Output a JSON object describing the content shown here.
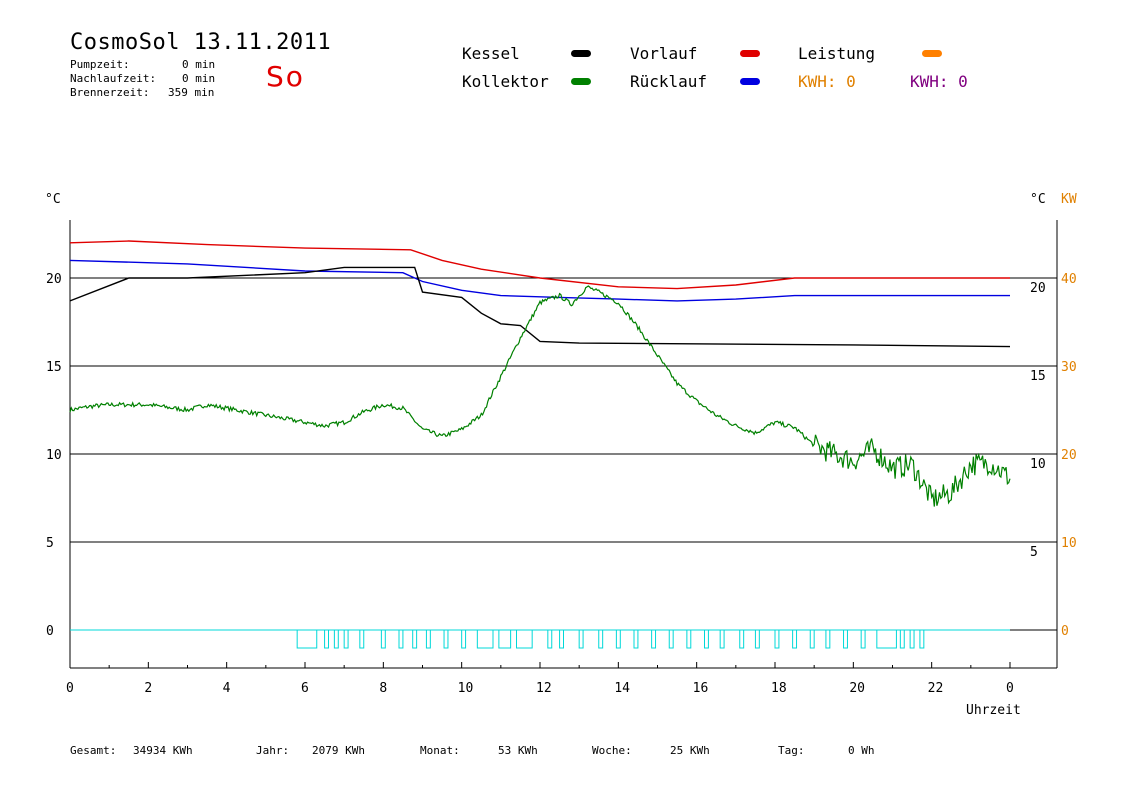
{
  "header": {
    "title": "CosmoSol 13.11.2011",
    "day": "So",
    "stats": [
      {
        "label": "Pumpzeit:",
        "value": "0 min"
      },
      {
        "label": "Nachlaufzeit:",
        "value": "0 min"
      },
      {
        "label": "Brennerzeit:",
        "value": "359 min"
      }
    ]
  },
  "legend": [
    {
      "label": "Kessel",
      "color": "#000000"
    },
    {
      "label": "Kollektor",
      "color": "#008000"
    },
    {
      "label": "Vorlauf",
      "color": "#e00000"
    },
    {
      "label": "Rücklauf",
      "color": "#0000e0"
    },
    {
      "label": "Leistung",
      "color": "#ff8000"
    },
    {
      "label": "KWH: 0",
      "color": "#e08000"
    },
    {
      "label": "KWH: 0",
      "color": "#800080"
    }
  ],
  "axes": {
    "left_unit": "°C",
    "right_unit": "°C",
    "right_kw_unit": "KW",
    "x_label": "Uhrzeit",
    "x_ticks": [
      "0",
      "2",
      "4",
      "6",
      "8",
      "10",
      "12",
      "14",
      "16",
      "18",
      "20",
      "22",
      "0"
    ],
    "y_left_ticks": [
      "0",
      "5",
      "10",
      "15",
      "20"
    ],
    "y_right_ticks": [
      "5",
      "10",
      "15",
      "20"
    ],
    "y_kw_ticks": [
      "0",
      "10",
      "20",
      "30",
      "40"
    ]
  },
  "footer": {
    "gesamt_label": "Gesamt:",
    "gesamt_value": "34934 KWh",
    "jahr_label": "Jahr:",
    "jahr_value": "2079 KWh",
    "monat_label": "Monat:",
    "monat_value": "53 KWh",
    "woche_label": "Woche:",
    "woche_value": "25 KWh",
    "tag_label": "Tag:",
    "tag_value": "0 Wh"
  },
  "chart_data": {
    "type": "line",
    "x_unit": "hour",
    "xlim": [
      0,
      24
    ],
    "ylim": [
      -2,
      23.5
    ],
    "ylim_kw": [
      -4,
      47
    ],
    "grid": true,
    "series": [
      {
        "name": "Vorlauf",
        "color": "#e00000",
        "points": [
          [
            0,
            22.0
          ],
          [
            1.5,
            22.1
          ],
          [
            3.5,
            21.9
          ],
          [
            6,
            21.7
          ],
          [
            8.7,
            21.6
          ],
          [
            9.5,
            21.0
          ],
          [
            10.5,
            20.5
          ],
          [
            12,
            20.0
          ],
          [
            14,
            19.5
          ],
          [
            15.5,
            19.4
          ],
          [
            17,
            19.6
          ],
          [
            18.5,
            20.0
          ],
          [
            24,
            20.0
          ]
        ]
      },
      {
        "name": "Rücklauf",
        "color": "#0000e0",
        "points": [
          [
            0,
            21.0
          ],
          [
            3,
            20.8
          ],
          [
            6,
            20.4
          ],
          [
            8.5,
            20.3
          ],
          [
            9,
            19.8
          ],
          [
            10,
            19.3
          ],
          [
            11,
            19.0
          ],
          [
            12.5,
            18.9
          ],
          [
            14,
            18.8
          ],
          [
            15.5,
            18.7
          ],
          [
            17,
            18.8
          ],
          [
            18.5,
            19.0
          ],
          [
            24,
            19.0
          ]
        ]
      },
      {
        "name": "Kessel",
        "color": "#000000",
        "points": [
          [
            0,
            18.7
          ],
          [
            1.5,
            20.0
          ],
          [
            3,
            20.0
          ],
          [
            6,
            20.3
          ],
          [
            7,
            20.6
          ],
          [
            8.8,
            20.6
          ],
          [
            9,
            19.2
          ],
          [
            10,
            18.9
          ],
          [
            10.5,
            18.0
          ],
          [
            11,
            17.4
          ],
          [
            11.5,
            17.3
          ],
          [
            12,
            16.4
          ],
          [
            13,
            16.3
          ],
          [
            20,
            16.2
          ],
          [
            24,
            16.1
          ]
        ]
      },
      {
        "name": "Kollektor",
        "color": "#008000",
        "points": [
          [
            0,
            12.5
          ],
          [
            0.5,
            12.7
          ],
          [
            1,
            12.8
          ],
          [
            2,
            12.8
          ],
          [
            3,
            12.5
          ],
          [
            3.5,
            12.8
          ],
          [
            4,
            12.6
          ],
          [
            5,
            12.2
          ],
          [
            6,
            11.8
          ],
          [
            6.5,
            11.6
          ],
          [
            7,
            11.8
          ],
          [
            7.5,
            12.4
          ],
          [
            8,
            12.8
          ],
          [
            8.5,
            12.6
          ],
          [
            9,
            11.4
          ],
          [
            9.5,
            11.0
          ],
          [
            10,
            11.4
          ],
          [
            10.5,
            12.2
          ],
          [
            11,
            14.4
          ],
          [
            11.5,
            16.6
          ],
          [
            12,
            18.6
          ],
          [
            12.5,
            19.0
          ],
          [
            12.8,
            18.5
          ],
          [
            13.2,
            19.5
          ],
          [
            13.5,
            19.2
          ],
          [
            14,
            18.6
          ],
          [
            14.5,
            17.2
          ],
          [
            15,
            15.6
          ],
          [
            15.5,
            14.0
          ],
          [
            16,
            13.0
          ],
          [
            16.5,
            12.2
          ],
          [
            17,
            11.6
          ],
          [
            17.5,
            11.2
          ],
          [
            18,
            11.8
          ],
          [
            18.5,
            11.5
          ],
          [
            19,
            10.5
          ],
          [
            19.5,
            10.0
          ],
          [
            20,
            9.6
          ],
          [
            20.5,
            10.3
          ],
          [
            21,
            9.2
          ],
          [
            21.5,
            9.4
          ],
          [
            22,
            7.4
          ],
          [
            22.5,
            7.8
          ],
          [
            23,
            9.4
          ],
          [
            23.5,
            9.5
          ],
          [
            24,
            8.6
          ]
        ]
      }
    ],
    "pump_pulses_hours": [
      [
        5.8,
        6.3
      ],
      [
        6.5,
        6.6
      ],
      [
        6.75,
        6.85
      ],
      [
        7.0,
        7.1
      ],
      [
        7.4,
        7.5
      ],
      [
        7.95,
        8.05
      ],
      [
        8.4,
        8.5
      ],
      [
        8.75,
        8.85
      ],
      [
        9.1,
        9.2
      ],
      [
        9.55,
        9.65
      ],
      [
        10.0,
        10.1
      ],
      [
        10.4,
        10.8
      ],
      [
        10.95,
        11.25
      ],
      [
        11.4,
        11.8
      ],
      [
        12.2,
        12.3
      ],
      [
        12.5,
        12.6
      ],
      [
        13.0,
        13.1
      ],
      [
        13.5,
        13.6
      ],
      [
        13.95,
        14.05
      ],
      [
        14.4,
        14.5
      ],
      [
        14.85,
        14.95
      ],
      [
        15.3,
        15.4
      ],
      [
        15.75,
        15.85
      ],
      [
        16.2,
        16.3
      ],
      [
        16.6,
        16.7
      ],
      [
        17.1,
        17.2
      ],
      [
        17.5,
        17.6
      ],
      [
        18.0,
        18.1
      ],
      [
        18.45,
        18.55
      ],
      [
        18.9,
        19.0
      ],
      [
        19.3,
        19.4
      ],
      [
        19.75,
        19.85
      ],
      [
        20.2,
        20.3
      ],
      [
        20.6,
        21.1
      ],
      [
        21.2,
        21.3
      ],
      [
        21.45,
        21.55
      ],
      [
        21.7,
        21.8
      ]
    ]
  }
}
